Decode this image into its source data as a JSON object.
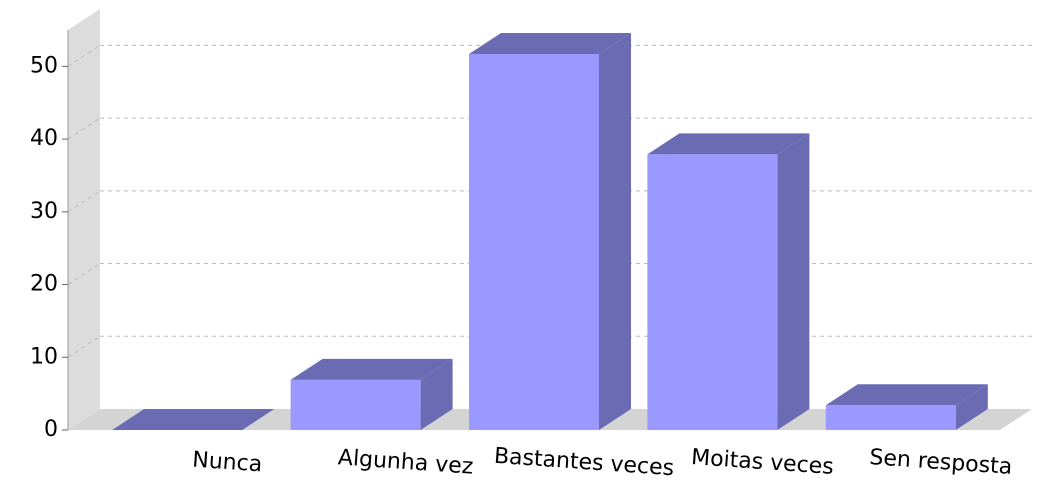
{
  "chart_data": {
    "type": "bar3d",
    "categories": [
      "Nunca",
      "Algunha vez",
      "Bastantes veces",
      "Moitas veces",
      "Sen resposta"
    ],
    "values": [
      0,
      6.9,
      51.7,
      37.9,
      3.4
    ],
    "color": "#9999ff",
    "side_color": "#6b6bb3",
    "ylim": [
      0,
      55
    ],
    "yticks": [
      0,
      10,
      20,
      30,
      40,
      50
    ],
    "grid": true
  }
}
